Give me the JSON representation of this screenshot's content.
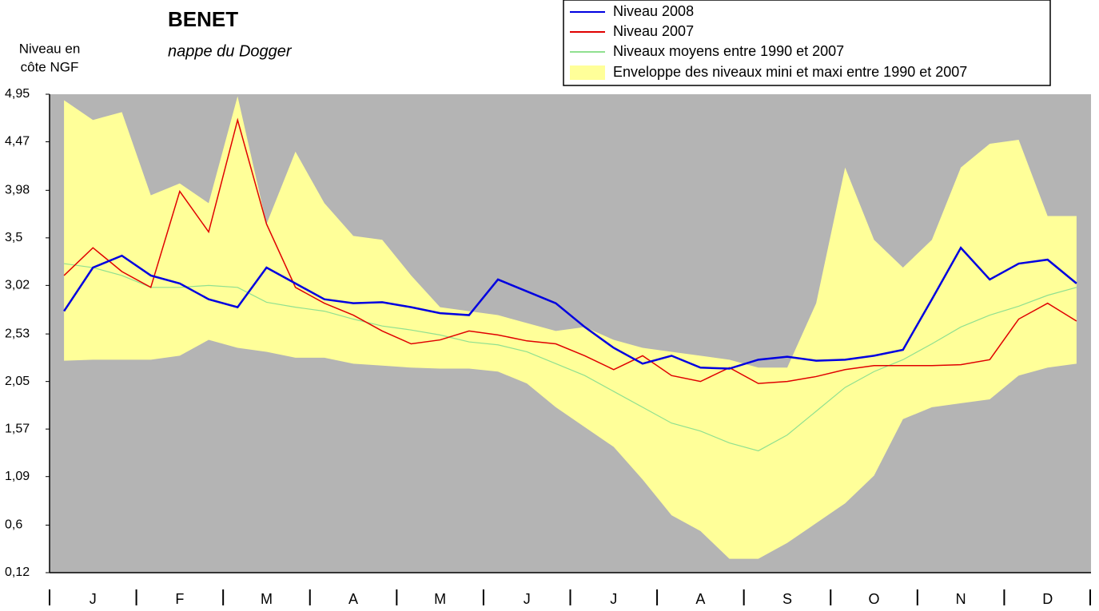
{
  "chart_data": {
    "type": "line",
    "title": "BENET",
    "subtitle": "nappe du Dogger",
    "y_label": [
      "Niveau en",
      "côte NGF"
    ],
    "categories": [
      null,
      "J",
      null,
      null,
      "F",
      null,
      null,
      "M",
      null,
      null,
      "A",
      null,
      null,
      "M",
      null,
      null,
      "J",
      null,
      null,
      "J",
      null,
      null,
      "A",
      null,
      null,
      "S",
      null,
      null,
      "O",
      null,
      null,
      "N",
      null,
      null,
      "D",
      null
    ],
    "envelope": {
      "name": "Enveloppe des niveaux mini et maxi entre 1990 et 2007",
      "color": "#ffff99",
      "upper": [
        4.89,
        4.69,
        4.77,
        3.93,
        4.05,
        3.85,
        4.93,
        3.64,
        4.37,
        3.85,
        3.52,
        3.48,
        3.12,
        2.8,
        2.76,
        2.72,
        2.64,
        2.56,
        2.6,
        2.47,
        2.39,
        2.35,
        2.31,
        2.27,
        2.19,
        2.19,
        2.84,
        4.21,
        3.48,
        3.2,
        3.48,
        4.21,
        4.45,
        4.49,
        3.72,
        3.72
      ],
      "lower": [
        2.26,
        2.27,
        2.27,
        2.27,
        2.31,
        2.47,
        2.39,
        2.35,
        2.29,
        2.29,
        2.23,
        2.21,
        2.19,
        2.18,
        2.18,
        2.15,
        2.03,
        1.79,
        1.59,
        1.39,
        1.06,
        0.7,
        0.54,
        0.26,
        0.26,
        0.42,
        0.62,
        0.82,
        1.1,
        1.67,
        1.79,
        1.83,
        1.87,
        2.11,
        2.19,
        2.23
      ]
    },
    "series": [
      {
        "name": "Niveau 2008",
        "color": "#0000e0",
        "width": 2.5,
        "values": [
          2.76,
          3.2,
          3.32,
          3.12,
          3.04,
          2.88,
          2.8,
          3.2,
          3.04,
          2.88,
          2.84,
          2.85,
          2.8,
          2.74,
          2.72,
          3.08,
          2.96,
          2.84,
          2.6,
          2.39,
          2.23,
          2.31,
          2.19,
          2.18,
          2.27,
          2.3,
          2.26,
          2.27,
          2.31,
          2.37,
          2.88,
          3.4,
          3.08,
          3.24,
          3.28,
          3.04
        ]
      },
      {
        "name": "Niveau 2007",
        "color": "#e00000",
        "width": 1.5,
        "values": [
          3.12,
          3.4,
          3.16,
          3.0,
          3.97,
          3.56,
          4.69,
          3.64,
          3.0,
          2.84,
          2.72,
          2.56,
          2.43,
          2.47,
          2.56,
          2.52,
          2.46,
          2.43,
          2.31,
          2.17,
          2.31,
          2.11,
          2.05,
          2.19,
          2.03,
          2.05,
          2.1,
          2.17,
          2.21,
          2.21,
          2.21,
          2.22,
          2.27,
          2.68,
          2.84,
          2.66
        ]
      },
      {
        "name": "Niveaux moyens entre 1990 et 2007",
        "color": "#90e090",
        "width": 1.2,
        "values": [
          3.24,
          3.2,
          3.12,
          3.0,
          3.0,
          3.02,
          3.0,
          2.85,
          2.8,
          2.76,
          2.68,
          2.61,
          2.57,
          2.52,
          2.45,
          2.42,
          2.35,
          2.23,
          2.11,
          1.95,
          1.79,
          1.63,
          1.55,
          1.43,
          1.35,
          1.51,
          1.75,
          1.99,
          2.15,
          2.27,
          2.43,
          2.6,
          2.72,
          2.81,
          2.92,
          3.0
        ]
      }
    ],
    "ylim": [
      0.12,
      4.95
    ],
    "yticks": [
      {
        "value": 0.12,
        "label": "0,12"
      },
      {
        "value": 0.6,
        "label": "0,6"
      },
      {
        "value": 1.09,
        "label": "1,09"
      },
      {
        "value": 1.57,
        "label": "1,57"
      },
      {
        "value": 2.05,
        "label": "2,05"
      },
      {
        "value": 2.53,
        "label": "2,53"
      },
      {
        "value": 3.02,
        "label": "3,02"
      },
      {
        "value": 3.5,
        "label": "3,5"
      },
      {
        "value": 3.98,
        "label": "3,98"
      },
      {
        "value": 4.47,
        "label": "4,47"
      },
      {
        "value": 4.95,
        "label": "4,95"
      }
    ],
    "plot_background": "#b4b4b4",
    "grid": false
  }
}
